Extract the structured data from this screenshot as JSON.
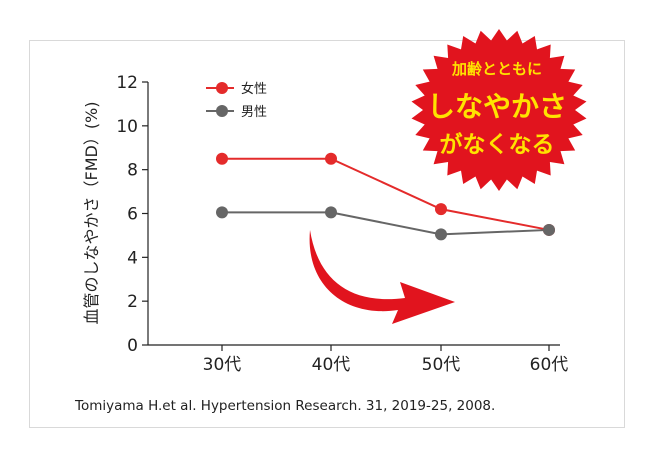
{
  "chart_data": {
    "type": "line",
    "categories": [
      "30代",
      "40代",
      "50代",
      "60代"
    ],
    "series": [
      {
        "name": "女性",
        "values": [
          8.5,
          8.5,
          6.2,
          5.25
        ],
        "color": "#e42b2b"
      },
      {
        "name": "男性",
        "values": [
          6.05,
          6.05,
          5.05,
          5.25
        ],
        "color": "#666666"
      }
    ],
    "ylabel": "血管のしなやかさ（FMD）(%)",
    "ylim": [
      0,
      12
    ],
    "yticks": [
      "0",
      "2",
      "4",
      "6",
      "8",
      "10",
      "12"
    ],
    "legend_position": "top-left",
    "grid": false
  },
  "badge": {
    "line1": "加齢とともに",
    "line2": "しなやかさ",
    "line3": "がなくなる",
    "fill_color": "#e1141e",
    "text_color": "#ffe300"
  },
  "arrow_color": "#e1141e",
  "source": "Tomiyama H.et al. Hypertension Research. 31, 2019-25, 2008."
}
